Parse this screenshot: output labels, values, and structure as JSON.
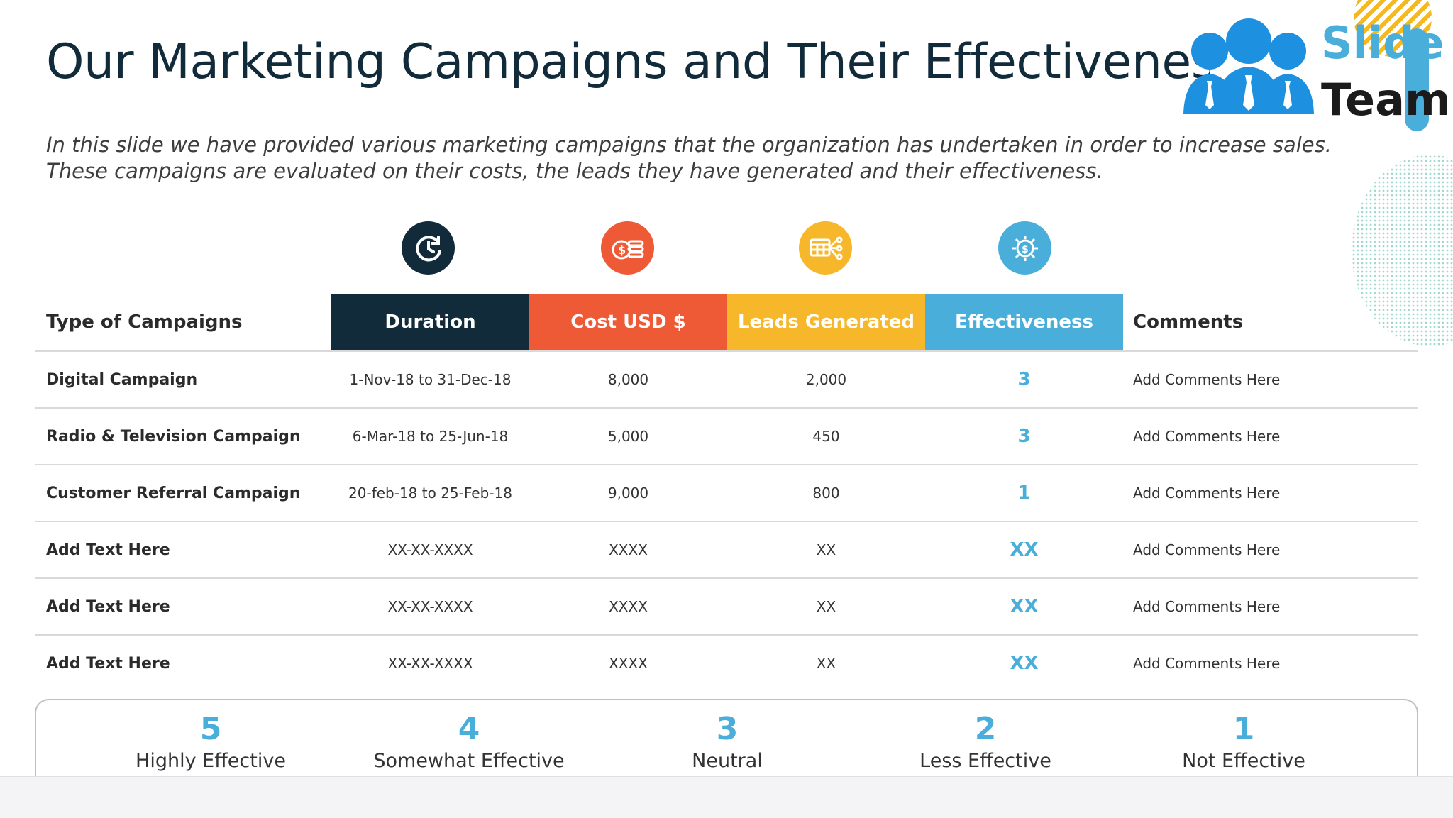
{
  "slide": {
    "title": "Our Marketing Campaigns and Their Effectiveness",
    "subtitle": "In this slide we have provided various marketing campaigns that the organization has undertaken in order to increase sales. These campaigns are evaluated on their costs, the leads they have generated and their effectiveness."
  },
  "logo": {
    "word1": "Slide",
    "word2": "Team"
  },
  "colors": {
    "duration": "#122b3a",
    "cost": "#ef5a36",
    "leads": "#f7b72b",
    "effectiveness": "#4aaedb"
  },
  "table": {
    "headers": {
      "type": "Type of Campaigns",
      "duration": "Duration",
      "cost": "Cost USD $",
      "leads": "Leads Generated",
      "effectiveness": "Effectiveness",
      "comments": "Comments"
    },
    "header_icons": {
      "duration": "clock-icon",
      "cost": "coins-dollar-icon",
      "leads": "calendar-network-icon",
      "effectiveness": "gear-dollar-icon"
    },
    "rows": [
      {
        "name": "Digital Campaign",
        "duration": "1-Nov-18 to 31-Dec-18",
        "cost": "8,000",
        "leads": "2,000",
        "effectiveness": "3",
        "comment": "Add Comments Here"
      },
      {
        "name": "Radio & Television Campaign",
        "duration": "6-Mar-18 to 25-Jun-18",
        "cost": "5,000",
        "leads": "450",
        "effectiveness": "3",
        "comment": "Add Comments Here"
      },
      {
        "name": "Customer Referral Campaign",
        "duration": "20-feb-18 to 25-Feb-18",
        "cost": "9,000",
        "leads": "800",
        "effectiveness": "1",
        "comment": "Add Comments Here"
      },
      {
        "name": "Add Text Here",
        "duration": "XX-XX-XXXX",
        "cost": "XXXX",
        "leads": "XX",
        "effectiveness": "XX",
        "comment": "Add Comments Here"
      },
      {
        "name": "Add Text Here",
        "duration": "XX-XX-XXXX",
        "cost": "XXXX",
        "leads": "XX",
        "effectiveness": "XX",
        "comment": "Add Comments Here"
      },
      {
        "name": "Add Text Here",
        "duration": "XX-XX-XXXX",
        "cost": "XXXX",
        "leads": "XX",
        "effectiveness": "XX",
        "comment": "Add Comments Here"
      }
    ]
  },
  "legend": [
    {
      "num": "5",
      "label": "Highly Effective"
    },
    {
      "num": "4",
      "label": "Somewhat Effective"
    },
    {
      "num": "3",
      "label": "Neutral"
    },
    {
      "num": "2",
      "label": "Less Effective"
    },
    {
      "num": "1",
      "label": "Not Effective"
    }
  ]
}
